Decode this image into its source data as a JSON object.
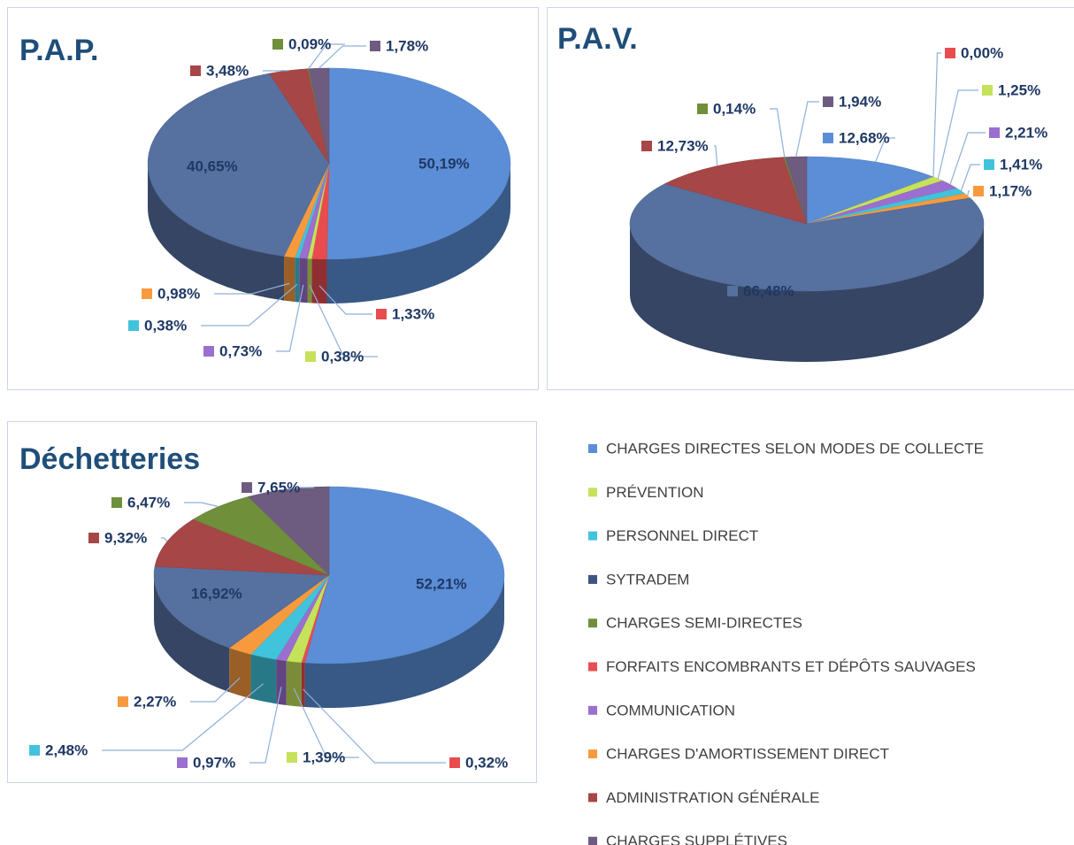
{
  "chart_data": [
    {
      "type": "pie",
      "title": "P.A.P.",
      "values": [
        50.19,
        1.33,
        0.38,
        0.73,
        0.38,
        0.98,
        40.65,
        3.48,
        0.09,
        1.78
      ],
      "value_labels": [
        "50,19%",
        "1,33%",
        "0,38%",
        "0,73%",
        "0,38%",
        "0,98%",
        "40,65%",
        "3,48%",
        "0,09%",
        "1,78%"
      ],
      "colors": [
        "#5b8ed6",
        "#e84c4f",
        "#c5e25a",
        "#9b6fcf",
        "#41c3db",
        "#f79a3e",
        "#56709f",
        "#a64646",
        "#6f8f3a",
        "#6e5b80"
      ]
    },
    {
      "type": "pie",
      "title": "P.A.V.",
      "values": [
        12.68,
        0.0,
        1.25,
        2.21,
        1.41,
        1.17,
        66.48,
        12.73,
        0.14,
        1.94
      ],
      "value_labels": [
        "12,68%",
        "0,00%",
        "1,25%",
        "2,21%",
        "1,41%",
        "1,17%",
        "66,48%",
        "12,73%",
        "0,14%",
        "1,94%"
      ],
      "colors": [
        "#5b8ed6",
        "#e84c4f",
        "#c5e25a",
        "#9b6fcf",
        "#41c3db",
        "#f79a3e",
        "#56709f",
        "#a64646",
        "#6f8f3a",
        "#6e5b80"
      ]
    },
    {
      "type": "pie",
      "title": "Déchetteries",
      "values": [
        52.21,
        0.32,
        1.39,
        0.97,
        2.48,
        2.27,
        16.92,
        9.32,
        6.47,
        7.65
      ],
      "value_labels": [
        "52,21%",
        "0,32%",
        "1,39%",
        "0,97%",
        "2,48%",
        "2,27%",
        "16,92%",
        "9,32%",
        "6,47%",
        "7,65%"
      ],
      "colors": [
        "#5b8ed6",
        "#e84c4f",
        "#c5e25a",
        "#9b6fcf",
        "#41c3db",
        "#f79a3e",
        "#56709f",
        "#a64646",
        "#6f8f3a",
        "#6e5b80"
      ]
    }
  ],
  "legend": {
    "items": [
      {
        "name": "CHARGES DIRECTES SELON MODES DE COLLECTE",
        "color": "#5b8ed6"
      },
      {
        "name": "PRÉVENTION",
        "color": "#c5e25a"
      },
      {
        "name": "PERSONNEL DIRECT",
        "color": "#41c3db"
      },
      {
        "name": "SYTRADEM",
        "color": "#3c5482"
      },
      {
        "name": "CHARGES SEMI-DIRECTES",
        "color": "#6f8f3a"
      },
      {
        "name": "FORFAITS ENCOMBRANTS ET DÉPÔTS SAUVAGES",
        "color": "#e84c4f"
      },
      {
        "name": "COMMUNICATION",
        "color": "#9b6fcf"
      },
      {
        "name": "CHARGES D'AMORTISSEMENT DIRECT",
        "color": "#f79a3e"
      },
      {
        "name": "ADMINISTRATION GÉNÉRALE",
        "color": "#a64646"
      },
      {
        "name": "CHARGES SUPPLÉTIVES",
        "color": "#6e5b80"
      }
    ]
  }
}
